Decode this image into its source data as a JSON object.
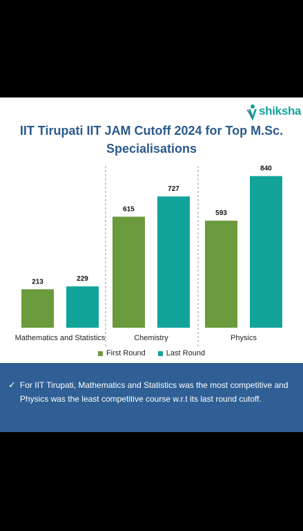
{
  "brand": {
    "name": "shiksha",
    "color": "#16a39a"
  },
  "title_lines": [
    "IIT Tirupati IIT JAM Cutoff 2024 for Top M.Sc.",
    "Specialisations"
  ],
  "chart_data": {
    "type": "bar",
    "title": "IIT Tirupati IIT JAM Cutoff 2024 for Top M.Sc. Specialisations",
    "categories": [
      "Mathematics and Statistics",
      "Chemistry",
      "Physics"
    ],
    "series": [
      {
        "name": "First Round",
        "values": [
          213,
          615,
          593
        ],
        "color": "#6a9a3c"
      },
      {
        "name": "Last Round",
        "values": [
          229,
          727,
          840
        ],
        "color": "#12a39b"
      }
    ],
    "ylim": [
      0,
      900
    ],
    "grid": false,
    "legend_position": "bottom",
    "data_labels": true
  },
  "note": {
    "icon": "check-icon",
    "text": "For IIT Tirupati, Mathematics and Statistics was the most competitive and Physics was the least competitive course w.r.t its last round cutoff."
  }
}
